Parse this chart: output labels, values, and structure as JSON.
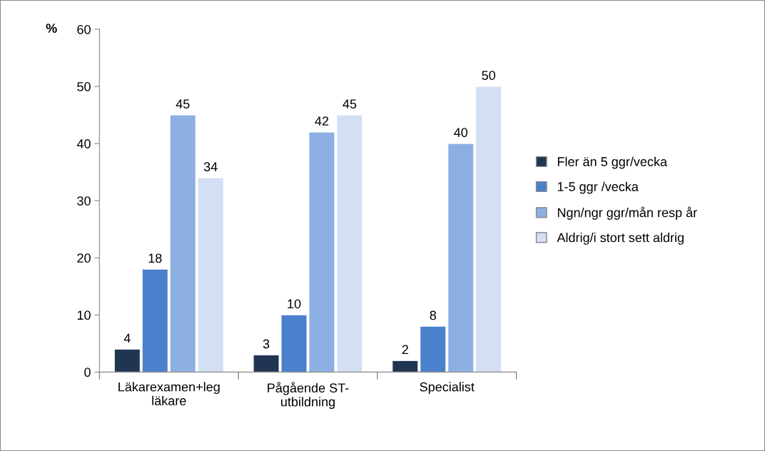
{
  "chart_data": {
    "type": "bar",
    "ylabel": "%",
    "categories": [
      "Läkarexamen+leg läkare",
      "Pågående ST-utbildning",
      "Specialist"
    ],
    "series": [
      {
        "name": "Fler än 5 ggr/vecka",
        "color": "#1f3552",
        "values": [
          4,
          3,
          2
        ]
      },
      {
        "name": "1-5 ggr /vecka",
        "color": "#4a80cc",
        "values": [
          18,
          10,
          8
        ]
      },
      {
        "name": "Ngn/ngr ggr/mån resp år",
        "color": "#8db0e2",
        "values": [
          45,
          42,
          40
        ]
      },
      {
        "name": "Aldrig/i stort sett aldrig",
        "color": "#d3e0f3",
        "values": [
          34,
          45,
          50
        ]
      }
    ],
    "ylim": [
      0,
      60
    ],
    "yticks": [
      0,
      10,
      20,
      30,
      40,
      50,
      60
    ],
    "data_labels": true,
    "grid": false,
    "legend": "right"
  }
}
